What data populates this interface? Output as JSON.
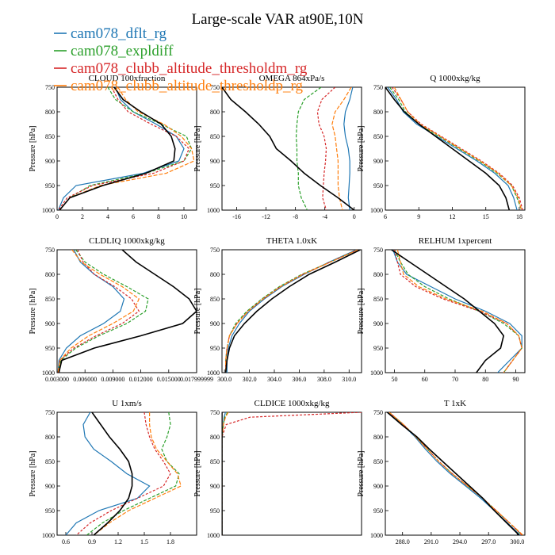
{
  "figure": {
    "title": "Large-scale VAR at90E,10N",
    "ylabel": "Pressure [hPa]"
  },
  "legend": [
    {
      "name": "cam078_dflt_rg",
      "color": "#1f77b4"
    },
    {
      "name": "cam078_expldiff",
      "color": "#2ca02c"
    },
    {
      "name": "cam078_clubb_altitude_thresholdm_rg",
      "color": "#d62728"
    },
    {
      "name": "cam078_clubb_altitude_thresholdp_rg",
      "color": "#ff7f0e"
    }
  ],
  "obs_color": "#000000",
  "chart_data": [
    {
      "id": "cloud",
      "type": "line",
      "title": "CLOUD 100xfraction",
      "xlim": [
        0,
        11
      ],
      "xticks": [
        0,
        2,
        4,
        6,
        8,
        10
      ],
      "xtick_labels": [
        "0",
        "2",
        "4",
        "6",
        "8",
        "10"
      ],
      "ylim": [
        750,
        1000
      ],
      "yticks": [
        750,
        800,
        850,
        900,
        950,
        1000
      ],
      "y": [
        750,
        775,
        800,
        825,
        850,
        875,
        900,
        925,
        950,
        975,
        1000
      ],
      "obs": [
        4.5,
        5.2,
        6.6,
        8.2,
        9.0,
        9.3,
        9.2,
        7.0,
        3.6,
        1.0,
        0.2
      ],
      "series": [
        [
          4.6,
          5.0,
          6.0,
          7.8,
          9.4,
          10.0,
          9.6,
          6.8,
          1.5,
          0.5,
          0.1
        ],
        [
          4.0,
          4.6,
          6.0,
          8.2,
          10.2,
          10.6,
          10.0,
          7.0,
          2.6,
          1.0,
          0.2
        ],
        [
          4.3,
          4.8,
          5.6,
          7.4,
          9.4,
          10.4,
          10.0,
          7.6,
          2.8,
          0.8,
          0.1
        ],
        [
          4.8,
          5.4,
          6.4,
          8.4,
          9.8,
          10.6,
          10.8,
          8.6,
          3.4,
          1.0,
          0.2
        ]
      ]
    },
    {
      "id": "omega",
      "type": "line",
      "title": "OMEGA 864xPa/s",
      "xlim": [
        -18,
        1
      ],
      "xticks": [
        -16,
        -12,
        -8,
        -4,
        0
      ],
      "xtick_labels": [
        "-16",
        "-12",
        "-8",
        "-4",
        "0"
      ],
      "ylim": [
        750,
        1000
      ],
      "yticks": [
        750,
        800,
        850,
        900,
        950,
        1000
      ],
      "y": [
        750,
        775,
        800,
        825,
        850,
        875,
        900,
        925,
        950,
        975,
        1000
      ],
      "obs": [
        -18.0,
        -16.8,
        -14.8,
        -13.0,
        -11.5,
        -10.6,
        -8.6,
        -6.8,
        -4.6,
        -2.2,
        0.0
      ],
      "series": [
        [
          -0.2,
          -0.6,
          -1.2,
          -1.4,
          -1.2,
          -0.8,
          -0.6,
          -0.6,
          -0.7,
          -0.8,
          -0.6
        ],
        [
          -4.5,
          -6.8,
          -7.6,
          -7.8,
          -7.9,
          -7.8,
          -7.8,
          -7.6,
          -7.6,
          -7.2,
          -6.4
        ],
        [
          -2.6,
          -4.4,
          -5.0,
          -4.8,
          -4.1,
          -3.8,
          -3.9,
          -4.1,
          -4.2,
          -4.3,
          -3.8
        ],
        [
          -0.4,
          -1.4,
          -2.6,
          -3.0,
          -2.6,
          -2.4,
          -2.2,
          -2.2,
          -2.2,
          -2.0,
          -1.6
        ]
      ]
    },
    {
      "id": "q",
      "type": "line",
      "title": "Q 1000xkg/kg",
      "xlim": [
        6,
        18.5
      ],
      "xticks": [
        6,
        9,
        12,
        15,
        18
      ],
      "xtick_labels": [
        "6",
        "9",
        "12",
        "15",
        "18"
      ],
      "ylim": [
        750,
        1000
      ],
      "yticks": [
        750,
        800,
        850,
        900,
        950,
        1000
      ],
      "y": [
        750,
        775,
        800,
        825,
        850,
        875,
        900,
        925,
        950,
        975,
        1000
      ],
      "obs": [
        6.0,
        6.8,
        7.7,
        9.0,
        10.5,
        12.0,
        13.5,
        15.0,
        16.2,
        16.8,
        17.1
      ],
      "series": [
        [
          6.2,
          7.0,
          7.6,
          8.8,
          10.6,
          12.4,
          14.2,
          15.8,
          17.0,
          17.5,
          17.8
        ],
        [
          6.4,
          7.2,
          7.8,
          9.0,
          10.8,
          12.6,
          14.4,
          16.0,
          17.3,
          17.8,
          18.2
        ],
        [
          6.6,
          7.4,
          8.0,
          9.2,
          11.0,
          12.8,
          14.6,
          16.2,
          17.4,
          18.0,
          18.3
        ],
        [
          6.8,
          7.4,
          8.0,
          9.1,
          10.9,
          12.7,
          14.5,
          16.1,
          17.3,
          17.9,
          18.2
        ]
      ]
    },
    {
      "id": "cldliq",
      "type": "line",
      "title": "CLDLIQ 1000xkg/kg",
      "xlim": [
        0.003,
        0.018
      ],
      "xticks": [
        0.003,
        0.006,
        0.009,
        0.012,
        0.015,
        0.018
      ],
      "xtick_labels": [
        "0.003000",
        "0.006000",
        "0.009000",
        "0.012000",
        "0.015000",
        "0.017999999"
      ],
      "ylim": [
        750,
        1000
      ],
      "yticks": [
        750,
        800,
        850,
        900,
        950,
        1000
      ],
      "y": [
        750,
        775,
        800,
        825,
        850,
        875,
        900,
        925,
        950,
        975,
        1000
      ],
      "obs": [
        0.01,
        0.0115,
        0.0135,
        0.0155,
        0.0172,
        0.018,
        0.0165,
        0.012,
        0.007,
        0.0035,
        0.0032
      ],
      "series": [
        [
          0.0048,
          0.0055,
          0.007,
          0.009,
          0.0102,
          0.0098,
          0.008,
          0.0055,
          0.004,
          0.0032,
          0.0031
        ],
        [
          0.005,
          0.006,
          0.008,
          0.0105,
          0.0128,
          0.0125,
          0.0105,
          0.0075,
          0.005,
          0.0034,
          0.0031
        ],
        [
          0.0052,
          0.0058,
          0.007,
          0.0092,
          0.011,
          0.0118,
          0.01,
          0.0072,
          0.0048,
          0.0033,
          0.0031
        ],
        [
          0.0046,
          0.0056,
          0.0076,
          0.01,
          0.0118,
          0.0112,
          0.009,
          0.0064,
          0.0045,
          0.0033,
          0.0031
        ]
      ]
    },
    {
      "id": "theta",
      "type": "line",
      "title": "THETA 1.0xK",
      "xlim": [
        299.8,
        311.0
      ],
      "xticks": [
        300,
        302,
        304,
        306,
        308,
        310
      ],
      "xtick_labels": [
        "300.0",
        "302.0",
        "304.0",
        "306.0",
        "308.0",
        "310.0"
      ],
      "ylim": [
        750,
        1000
      ],
      "yticks": [
        750,
        800,
        850,
        900,
        950,
        1000
      ],
      "y": [
        750,
        775,
        800,
        825,
        850,
        875,
        900,
        925,
        950,
        975,
        1000
      ],
      "obs": [
        310.9,
        308.9,
        306.8,
        305.2,
        303.8,
        302.6,
        301.6,
        300.8,
        300.4,
        300.2,
        300.1
      ],
      "series": [
        [
          310.6,
          308.4,
          306.4,
          304.6,
          303.2,
          302.0,
          301.2,
          300.6,
          300.3,
          300.2,
          300.2
        ],
        [
          310.7,
          308.5,
          306.2,
          304.4,
          303.0,
          301.8,
          300.9,
          300.4,
          300.2,
          300.1,
          300.1
        ],
        [
          310.7,
          308.5,
          306.3,
          304.5,
          303.1,
          301.9,
          301.0,
          300.4,
          300.2,
          300.1,
          300.1
        ],
        [
          310.7,
          308.5,
          306.3,
          304.5,
          303.1,
          301.9,
          301.0,
          300.4,
          300.2,
          300.1,
          300.1
        ]
      ]
    },
    {
      "id": "relhum",
      "type": "line",
      "title": "RELHUM 1xpercent",
      "xlim": [
        47,
        93
      ],
      "xticks": [
        50,
        60,
        70,
        80,
        90
      ],
      "xtick_labels": [
        "50",
        "60",
        "70",
        "80",
        "90"
      ],
      "ylim": [
        750,
        1000
      ],
      "yticks": [
        750,
        800,
        850,
        900,
        950,
        1000
      ],
      "y": [
        750,
        775,
        800,
        825,
        850,
        875,
        900,
        925,
        950,
        975,
        1000
      ],
      "obs": [
        49.0,
        55.0,
        61.0,
        67.0,
        73.0,
        78.0,
        83.0,
        86.0,
        85.0,
        80.0,
        77.0
      ],
      "series": [
        [
          49.5,
          51.0,
          54.0,
          62.0,
          70.0,
          80.0,
          88.0,
          92.0,
          92.0,
          88.0,
          84.0
        ],
        [
          50.0,
          52.0,
          54.5,
          60.0,
          68.0,
          78.0,
          86.0,
          91.0,
          92.0,
          89.0,
          86.0
        ],
        [
          50.0,
          51.0,
          52.0,
          57.0,
          66.0,
          78.0,
          87.0,
          91.0,
          92.0,
          89.0,
          86.0
        ],
        [
          51.0,
          52.0,
          53.0,
          58.0,
          67.0,
          79.0,
          87.0,
          91.0,
          92.0,
          89.0,
          86.0
        ]
      ]
    },
    {
      "id": "u",
      "type": "line",
      "title": "U 1xm/s",
      "xlim": [
        0.5,
        2.1
      ],
      "xticks": [
        0.6,
        0.9,
        1.2,
        1.5,
        1.8
      ],
      "xtick_labels": [
        "0.6",
        "0.9",
        "1.2",
        "1.5",
        "1.8"
      ],
      "ylim": [
        750,
        1000
      ],
      "yticks": [
        750,
        800,
        850,
        900,
        950,
        1000
      ],
      "y": [
        750,
        775,
        800,
        825,
        850,
        875,
        900,
        925,
        950,
        975,
        1000
      ],
      "obs": [
        0.9,
        1.0,
        1.1,
        1.22,
        1.32,
        1.36,
        1.36,
        1.32,
        1.22,
        1.08,
        0.92
      ],
      "series": [
        [
          0.88,
          0.8,
          0.82,
          0.92,
          1.12,
          1.3,
          1.56,
          1.42,
          0.98,
          0.72,
          0.6
        ],
        [
          1.78,
          1.8,
          1.76,
          1.7,
          1.76,
          1.9,
          1.86,
          1.56,
          1.26,
          1.02,
          0.84
        ],
        [
          1.5,
          1.52,
          1.56,
          1.62,
          1.72,
          1.8,
          1.72,
          1.42,
          1.12,
          0.88,
          0.72
        ],
        [
          1.56,
          1.56,
          1.58,
          1.64,
          1.76,
          1.88,
          1.92,
          1.62,
          1.32,
          1.1,
          0.92
        ]
      ]
    },
    {
      "id": "cldice",
      "type": "line",
      "title": "CLDICE 1000xkg/kg",
      "xlim": [
        0,
        2e-05
      ],
      "xticks": [],
      "xtick_labels": [],
      "ylim": [
        750,
        1000
      ],
      "yticks": [
        750,
        800,
        850,
        900,
        950,
        1000
      ],
      "y": [
        750,
        760,
        775,
        800,
        850,
        900,
        950,
        1000
      ],
      "obs": [
        0,
        0,
        0,
        0,
        0,
        0,
        0,
        0
      ],
      "series": [
        [
          5e-07,
          3e-07,
          2e-07,
          0,
          0,
          0,
          0,
          0
        ],
        [
          8e-07,
          4e-07,
          2e-07,
          0,
          0,
          0,
          0,
          0
        ],
        [
          2e-05,
          4e-06,
          6e-07,
          0,
          0,
          0,
          0,
          0
        ],
        [
          9e-07,
          5e-07,
          2e-07,
          0,
          0,
          0,
          0,
          0
        ]
      ]
    },
    {
      "id": "t",
      "type": "line",
      "title": "T 1xK",
      "xlim": [
        286.2,
        300.8
      ],
      "xticks": [
        288,
        291,
        294,
        297,
        300
      ],
      "xtick_labels": [
        "288.0",
        "291.0",
        "294.0",
        "297.0",
        "300.0"
      ],
      "ylim": [
        750,
        1000
      ],
      "yticks": [
        750,
        800,
        850,
        900,
        950,
        1000
      ],
      "y": [
        750,
        775,
        800,
        825,
        850,
        875,
        900,
        925,
        950,
        975,
        1000
      ],
      "obs": [
        286.4,
        287.9,
        289.5,
        290.8,
        292.2,
        293.6,
        295.0,
        296.4,
        297.6,
        298.9,
        300.2
      ],
      "series": [
        [
          286.5,
          288.0,
          289.3,
          290.4,
          291.6,
          293.0,
          294.6,
          296.2,
          297.6,
          299.0,
          300.3
        ],
        [
          286.6,
          288.1,
          289.4,
          290.6,
          291.8,
          293.2,
          294.8,
          296.4,
          297.8,
          299.2,
          300.5
        ],
        [
          286.6,
          288.1,
          289.4,
          290.6,
          291.8,
          293.2,
          294.8,
          296.4,
          297.8,
          299.2,
          300.5
        ],
        [
          286.6,
          288.1,
          289.4,
          290.6,
          291.8,
          293.2,
          294.8,
          296.4,
          297.8,
          299.2,
          300.6
        ]
      ]
    }
  ]
}
